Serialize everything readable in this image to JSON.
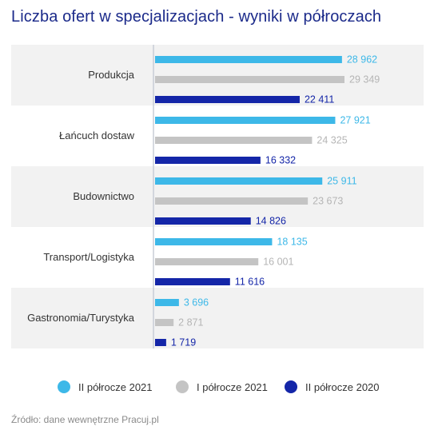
{
  "title": "Liczba ofert w specjalizacjach - wyniki w półroczach",
  "source": "Źródło: dane wewnętrzne Pracuj.pl",
  "colors": {
    "h2_2021": "#3db8e8",
    "h1_2021": "#c4c4c4",
    "h2_2020": "#1426a8",
    "band": "#f2f2f2",
    "axis": "#c8cdd6"
  },
  "chart_data": {
    "type": "bar",
    "orientation": "horizontal",
    "title": "Liczba ofert w specjalizacjach - wyniki w półroczach",
    "categories": [
      "Produkcja",
      "Łańcuch dostaw",
      "Budownictwo",
      "Transport/Logistyka",
      "Gastronomia/Turystyka"
    ],
    "series": [
      {
        "name": "II półrocze 2021",
        "values": [
          28962,
          27921,
          25911,
          18135,
          3696
        ],
        "labels": [
          "28 962",
          "27 921",
          "25 911",
          "18 135",
          "3 696"
        ]
      },
      {
        "name": "I półrocze 2021",
        "values": [
          29349,
          24325,
          23673,
          16001,
          2871
        ],
        "labels": [
          "29 349",
          "24 325",
          "23 673",
          "16 001",
          "2 871"
        ]
      },
      {
        "name": "II półrocze 2020",
        "values": [
          22411,
          16332,
          14826,
          11616,
          1719
        ],
        "labels": [
          "22 411",
          "16 332",
          "14 826",
          "11 616",
          "1 719"
        ]
      }
    ],
    "legend_position": "bottom",
    "xlim": [
      0,
      37000
    ]
  }
}
